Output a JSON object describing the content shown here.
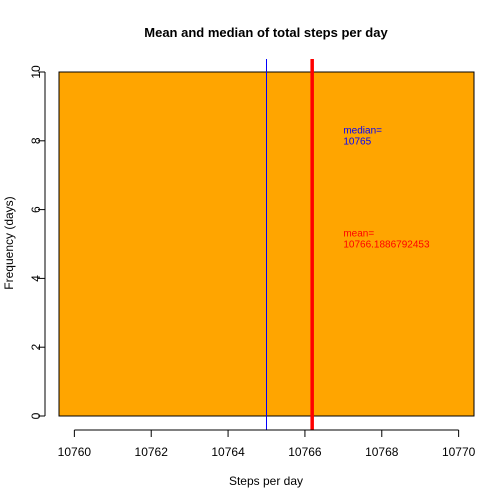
{
  "chart_data": {
    "type": "bar",
    "title": "Mean and median of total steps per day",
    "xlabel": "Steps per day",
    "ylabel": "Frequency (days)",
    "xlim": [
      10759.6,
      10770.4
    ],
    "ylim": [
      0,
      10
    ],
    "x_ticks": [
      10760,
      10762,
      10764,
      10766,
      10768,
      10770
    ],
    "y_ticks": [
      0,
      2,
      4,
      6,
      8,
      10
    ],
    "grid": false,
    "bars": [
      {
        "x0": 10759.6,
        "x1": 10770.4,
        "value": 10
      }
    ],
    "reference_lines": [
      {
        "value": 10765,
        "color": "#0000ff",
        "label_lines": [
          "median=",
          "10765"
        ],
        "label_x": 10767,
        "label_y": 8.3
      },
      {
        "value": 10766.1886792453,
        "color": "#ff0000",
        "label_lines": [
          "mean=",
          "10766.1886792453"
        ],
        "label_x": 10767,
        "label_y": 5.3
      }
    ],
    "colors": {
      "bar_fill": "#ffa500",
      "bar_border": "#000000",
      "axis": "#000000"
    }
  }
}
